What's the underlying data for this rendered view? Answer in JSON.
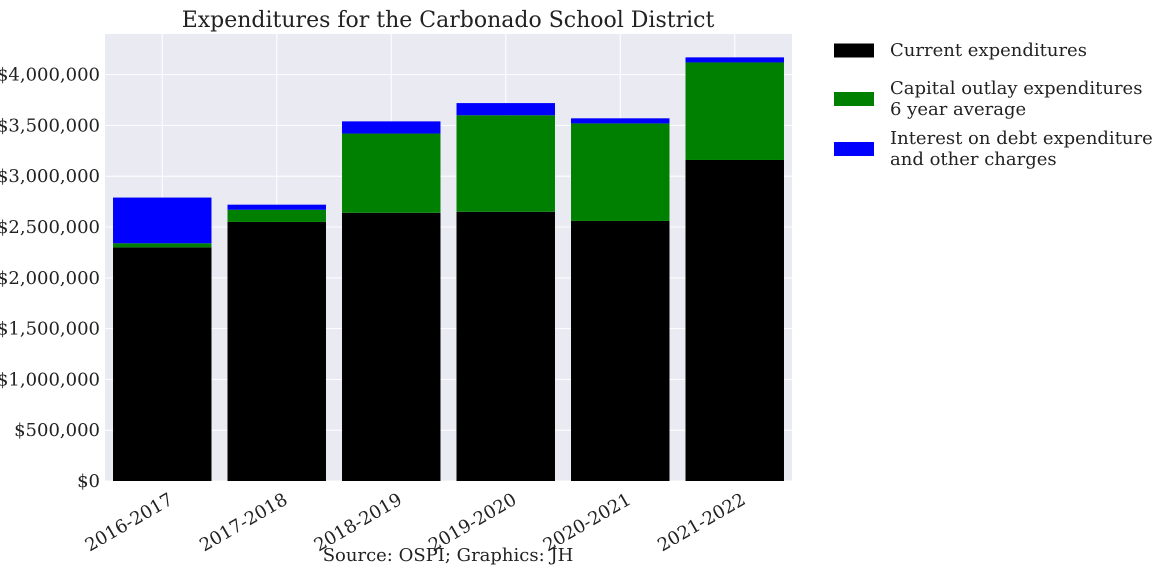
{
  "chart_data": {
    "type": "bar",
    "stacked": true,
    "title": "Expenditures for the Carbonado School District",
    "footnote": "Source: OSPI; Graphics: JH",
    "xlabel": "",
    "ylabel": "",
    "ylim": [
      0,
      4400000
    ],
    "yticks": [
      0,
      500000,
      1000000,
      1500000,
      2000000,
      2500000,
      3000000,
      3500000,
      4000000
    ],
    "ytick_labels": [
      "$0",
      "$500,000",
      "$1,000,000",
      "$1,500,000",
      "$2,000,000",
      "$2,500,000",
      "$3,000,000",
      "$3,500,000",
      "$4,000,000"
    ],
    "grid": true,
    "legend_position": "outside-right",
    "categories": [
      "2016-2017",
      "2017-2018",
      "2018-2019",
      "2019-2020",
      "2020-2021",
      "2021-2022"
    ],
    "series": [
      {
        "name": "Current expenditures",
        "color": "#000000",
        "values": [
          2300000,
          2550000,
          2640000,
          2650000,
          2560000,
          3160000
        ]
      },
      {
        "name": "Capital outlay expenditures\n6 year average",
        "color": "#008000",
        "values": [
          40000,
          120000,
          780000,
          950000,
          960000,
          960000
        ]
      },
      {
        "name": "Interest on debt expenditures\nand other charges",
        "color": "#0000ff",
        "values": [
          450000,
          50000,
          120000,
          120000,
          50000,
          50000
        ]
      }
    ]
  }
}
